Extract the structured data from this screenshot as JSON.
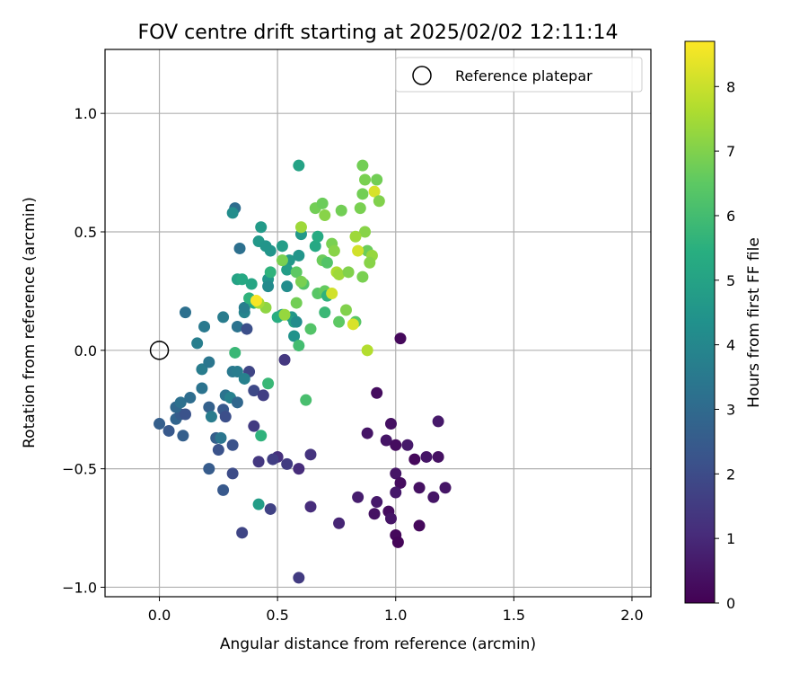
{
  "chart_data": {
    "type": "scatter",
    "title": "FOV centre drift starting at 2025/02/02 12:11:14",
    "xlabel": "Angular distance from reference (arcmin)",
    "ylabel": "Rotation from reference (arcmin)",
    "xlim": [
      -0.23,
      2.08
    ],
    "ylim": [
      -1.04,
      1.27
    ],
    "xticks": [
      0.0,
      0.5,
      1.0,
      1.5,
      2.0
    ],
    "xtick_labels": [
      "0.0",
      "0.5",
      "1.0",
      "1.5",
      "2.0"
    ],
    "yticks": [
      -1.0,
      -0.5,
      0.0,
      0.5,
      1.0
    ],
    "ytick_labels": [
      "−1.0",
      "−0.5",
      "0.0",
      "0.5",
      "1.0"
    ],
    "grid": true,
    "legend": {
      "position": "top-right",
      "entries": [
        "Reference platepar"
      ]
    },
    "colorbar": {
      "label": "Hours from first FF file",
      "colormap": "viridis",
      "range": [
        0,
        8.7
      ],
      "ticks": [
        0,
        1,
        2,
        3,
        4,
        5,
        6,
        7,
        8
      ],
      "tick_labels": [
        "0",
        "1",
        "2",
        "3",
        "4",
        "5",
        "6",
        "7",
        "8"
      ]
    },
    "reference_point": {
      "name": "Reference platepar",
      "x": 0.0,
      "y": 0.0
    },
    "series": [
      {
        "points": [
          [
            1.02,
            0.05,
            0.2
          ],
          [
            0.92,
            -0.18,
            0.3
          ],
          [
            0.88,
            -0.35,
            0.5
          ],
          [
            0.98,
            -0.31,
            0.4
          ],
          [
            0.96,
            -0.38,
            0.5
          ],
          [
            1.0,
            -0.4,
            0.3
          ],
          [
            1.05,
            -0.4,
            0.6
          ],
          [
            1.08,
            -0.46,
            0.2
          ],
          [
            1.13,
            -0.45,
            0.5
          ],
          [
            1.18,
            -0.3,
            0.6
          ],
          [
            1.18,
            -0.45,
            0.4
          ],
          [
            1.0,
            -0.52,
            0.5
          ],
          [
            1.02,
            -0.56,
            0.3
          ],
          [
            1.0,
            -0.6,
            0.6
          ],
          [
            1.1,
            -0.58,
            0.4
          ],
          [
            1.16,
            -0.62,
            0.5
          ],
          [
            1.21,
            -0.58,
            0.5
          ],
          [
            0.84,
            -0.62,
            0.7
          ],
          [
            0.92,
            -0.64,
            0.6
          ],
          [
            0.91,
            -0.69,
            0.4
          ],
          [
            0.97,
            -0.68,
            0.3
          ],
          [
            0.98,
            -0.71,
            0.5
          ],
          [
            1.0,
            -0.78,
            0.2
          ],
          [
            1.01,
            -0.81,
            0.1
          ],
          [
            1.1,
            -0.74,
            0.2
          ],
          [
            0.76,
            -0.73,
            0.9
          ],
          [
            0.53,
            -0.04,
            1.4
          ],
          [
            0.5,
            -0.45,
            1.2
          ],
          [
            0.48,
            -0.46,
            1.6
          ],
          [
            0.54,
            -0.48,
            1.5
          ],
          [
            0.59,
            -0.5,
            1.1
          ],
          [
            0.64,
            -0.44,
            1.3
          ],
          [
            0.64,
            -0.66,
            1.1
          ],
          [
            0.59,
            -0.96,
            1.5
          ],
          [
            0.47,
            -0.67,
            1.7
          ],
          [
            0.42,
            -0.47,
            1.4
          ],
          [
            0.4,
            -0.32,
            1.5
          ],
          [
            0.38,
            -0.09,
            1.8
          ],
          [
            0.4,
            -0.17,
            1.9
          ],
          [
            0.44,
            -0.19,
            1.6
          ],
          [
            0.35,
            -0.77,
            1.8
          ],
          [
            0.31,
            -0.4,
            2.2
          ],
          [
            0.31,
            -0.52,
            2.0
          ],
          [
            0.27,
            -0.59,
            2.4
          ],
          [
            0.25,
            -0.42,
            2.2
          ],
          [
            0.27,
            -0.25,
            2.4
          ],
          [
            0.28,
            -0.28,
            2.1
          ],
          [
            0.24,
            -0.37,
            2.6
          ],
          [
            0.21,
            -0.5,
            2.5
          ],
          [
            0.0,
            -0.31,
            2.6
          ],
          [
            0.04,
            -0.34,
            2.4
          ],
          [
            0.1,
            -0.36,
            2.6
          ],
          [
            0.07,
            -0.29,
            2.8
          ],
          [
            0.09,
            -0.27,
            2.5
          ],
          [
            0.11,
            -0.27,
            2.2
          ],
          [
            0.07,
            -0.24,
            2.9
          ],
          [
            0.09,
            -0.22,
            3.2
          ],
          [
            0.13,
            -0.2,
            3.1
          ],
          [
            0.18,
            -0.16,
            3.3
          ],
          [
            0.18,
            -0.08,
            3.6
          ],
          [
            0.21,
            -0.05,
            3.4
          ],
          [
            0.21,
            -0.24,
            2.7
          ],
          [
            0.22,
            -0.28,
            3.6
          ],
          [
            0.28,
            -0.19,
            3.3
          ],
          [
            0.3,
            -0.2,
            3.8
          ],
          [
            0.26,
            -0.37,
            3.4
          ],
          [
            0.31,
            -0.09,
            3.5
          ],
          [
            0.33,
            -0.09,
            3.6
          ],
          [
            0.33,
            -0.22,
            2.9
          ],
          [
            0.36,
            -0.12,
            3.8
          ],
          [
            0.19,
            0.1,
            3.5
          ],
          [
            0.16,
            0.03,
            3.7
          ],
          [
            0.11,
            0.16,
            3.2
          ],
          [
            0.27,
            0.14,
            3.6
          ],
          [
            0.33,
            0.1,
            3.3
          ],
          [
            0.36,
            0.16,
            3.9
          ],
          [
            0.36,
            0.18,
            3.7
          ],
          [
            0.37,
            0.09,
            2.1
          ],
          [
            0.34,
            0.43,
            3.2
          ],
          [
            0.32,
            0.6,
            3.1
          ],
          [
            0.31,
            0.58,
            4.2
          ],
          [
            0.42,
            0.46,
            4.6
          ],
          [
            0.43,
            0.52,
            4.7
          ],
          [
            0.45,
            0.44,
            4.5
          ],
          [
            0.47,
            0.42,
            4.5
          ],
          [
            0.46,
            0.3,
            4.5
          ],
          [
            0.46,
            0.27,
            4.1
          ],
          [
            0.52,
            0.44,
            4.8
          ],
          [
            0.55,
            0.38,
            4.6
          ],
          [
            0.54,
            0.34,
            4.8
          ],
          [
            0.52,
            0.15,
            5.0
          ],
          [
            0.54,
            0.27,
            4.2
          ],
          [
            0.56,
            0.14,
            4.6
          ],
          [
            0.57,
            0.12,
            5.0
          ],
          [
            0.58,
            0.12,
            4.2
          ],
          [
            0.57,
            0.06,
            4.4
          ],
          [
            0.59,
            0.4,
            4.5
          ],
          [
            0.59,
            0.78,
            5.0
          ],
          [
            0.6,
            0.49,
            4.6
          ],
          [
            0.66,
            0.44,
            5.2
          ],
          [
            0.67,
            0.48,
            5.3
          ],
          [
            0.39,
            0.28,
            5.1
          ],
          [
            0.4,
            0.2,
            5.2
          ],
          [
            0.33,
            0.3,
            5.0
          ],
          [
            0.35,
            0.3,
            5.2
          ],
          [
            0.38,
            0.22,
            5.6
          ],
          [
            0.32,
            -0.01,
            5.8
          ],
          [
            0.46,
            -0.14,
            5.8
          ],
          [
            0.43,
            -0.36,
            5.6
          ],
          [
            0.42,
            -0.65,
            4.8
          ],
          [
            0.47,
            0.33,
            5.6
          ],
          [
            0.5,
            0.14,
            5.4
          ],
          [
            0.59,
            0.02,
            6.0
          ],
          [
            0.61,
            0.28,
            6.3
          ],
          [
            0.62,
            -0.21,
            6.1
          ],
          [
            0.64,
            0.09,
            6.3
          ],
          [
            0.67,
            0.24,
            6.4
          ],
          [
            0.7,
            0.25,
            6.6
          ],
          [
            0.71,
            0.23,
            5.6
          ],
          [
            0.7,
            0.16,
            5.8
          ],
          [
            0.76,
            0.12,
            6.5
          ],
          [
            0.58,
            0.33,
            6.5
          ],
          [
            0.6,
            0.29,
            6.9
          ],
          [
            0.58,
            0.2,
            6.8
          ],
          [
            0.52,
            0.38,
            6.9
          ],
          [
            0.45,
            0.18,
            7.2
          ],
          [
            0.42,
            0.2,
            7.5
          ],
          [
            0.41,
            0.21,
            8.6
          ],
          [
            0.53,
            0.15,
            7.3
          ],
          [
            0.6,
            0.52,
            7.4
          ],
          [
            0.66,
            0.6,
            6.8
          ],
          [
            0.69,
            0.62,
            6.7
          ],
          [
            0.7,
            0.57,
            7.1
          ],
          [
            0.69,
            0.38,
            6.7
          ],
          [
            0.71,
            0.37,
            6.3
          ],
          [
            0.73,
            0.45,
            6.9
          ],
          [
            0.74,
            0.42,
            7.1
          ],
          [
            0.75,
            0.33,
            7.6
          ],
          [
            0.73,
            0.24,
            8.1
          ],
          [
            0.76,
            0.32,
            7.4
          ],
          [
            0.8,
            0.33,
            7.0
          ],
          [
            0.77,
            0.59,
            6.8
          ],
          [
            0.79,
            0.17,
            7.0
          ],
          [
            0.83,
            0.12,
            6.4
          ],
          [
            0.82,
            0.11,
            8.2
          ],
          [
            0.86,
            0.66,
            6.8
          ],
          [
            0.87,
            0.72,
            6.9
          ],
          [
            0.86,
            0.78,
            6.8
          ],
          [
            0.85,
            0.6,
            6.9
          ],
          [
            0.87,
            0.5,
            7.1
          ],
          [
            0.88,
            0.42,
            6.7
          ],
          [
            0.84,
            0.42,
            8.1
          ],
          [
            0.9,
            0.4,
            7.3
          ],
          [
            0.92,
            0.72,
            6.8
          ],
          [
            0.91,
            0.67,
            8.2
          ],
          [
            0.93,
            0.63,
            7.0
          ],
          [
            0.89,
            0.37,
            7.1
          ],
          [
            0.83,
            0.48,
            7.4
          ],
          [
            0.86,
            0.31,
            6.9
          ],
          [
            0.88,
            0.0,
            7.7
          ]
        ]
      }
    ]
  }
}
